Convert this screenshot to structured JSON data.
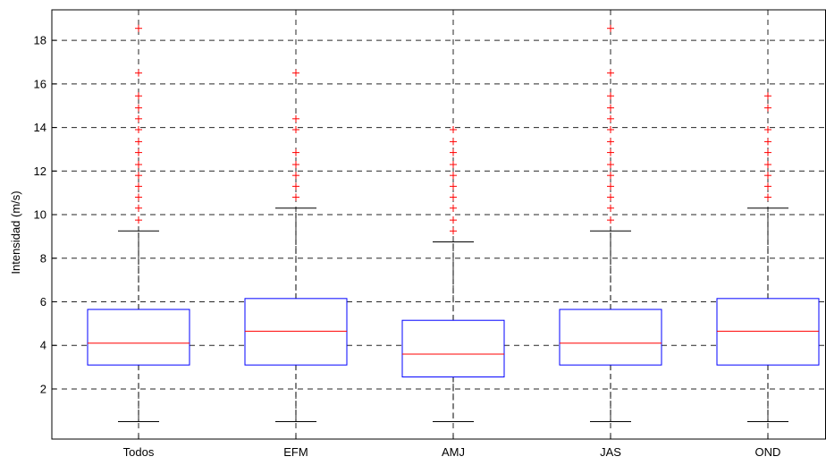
{
  "chart_data": {
    "type": "box",
    "title": "",
    "xlabel": "",
    "ylabel": "Intensidad (m/s)",
    "ylim": [
      -0.3,
      19.4
    ],
    "yticks": [
      2,
      4,
      6,
      8,
      10,
      12,
      14,
      16,
      18
    ],
    "grid": true,
    "categories": [
      "Todos",
      "EFM",
      "AMJ",
      "JAS",
      "OND"
    ],
    "boxes": [
      {
        "category": "Todos",
        "whisker_low": 0.5,
        "q1": 3.1,
        "median": 4.1,
        "q3": 5.65,
        "whisker_high": 9.25,
        "outliers": [
          9.75,
          10.3,
          10.8,
          11.3,
          11.8,
          12.3,
          12.85,
          13.35,
          13.9,
          14.4,
          14.9,
          15.45,
          16.5,
          18.55
        ]
      },
      {
        "category": "EFM",
        "whisker_low": 0.5,
        "q1": 3.1,
        "median": 4.65,
        "q3": 6.15,
        "whisker_high": 10.3,
        "outliers": [
          10.8,
          11.3,
          11.8,
          12.3,
          12.85,
          13.9,
          14.4,
          16.5
        ]
      },
      {
        "category": "AMJ",
        "whisker_low": 0.5,
        "q1": 2.55,
        "median": 3.6,
        "q3": 5.15,
        "whisker_high": 8.75,
        "outliers": [
          9.25,
          9.75,
          10.3,
          10.8,
          11.3,
          11.8,
          12.3,
          12.85,
          13.35,
          13.9
        ]
      },
      {
        "category": "JAS",
        "whisker_low": 0.5,
        "q1": 3.1,
        "median": 4.1,
        "q3": 5.65,
        "whisker_high": 9.25,
        "outliers": [
          9.75,
          10.3,
          10.8,
          11.3,
          11.8,
          12.3,
          12.85,
          13.35,
          13.9,
          14.4,
          14.9,
          15.45,
          16.5,
          18.55
        ]
      },
      {
        "category": "OND",
        "whisker_low": 0.5,
        "q1": 3.1,
        "median": 4.65,
        "q3": 6.15,
        "whisker_high": 10.3,
        "outliers": [
          10.8,
          11.3,
          11.8,
          12.3,
          12.85,
          13.35,
          13.9,
          14.9,
          15.45
        ]
      }
    ],
    "colors": {
      "box": "#0000ff",
      "median": "#ff0000",
      "outlier": "#ff0000",
      "whisker": "#000000",
      "grid": "#000000"
    }
  }
}
